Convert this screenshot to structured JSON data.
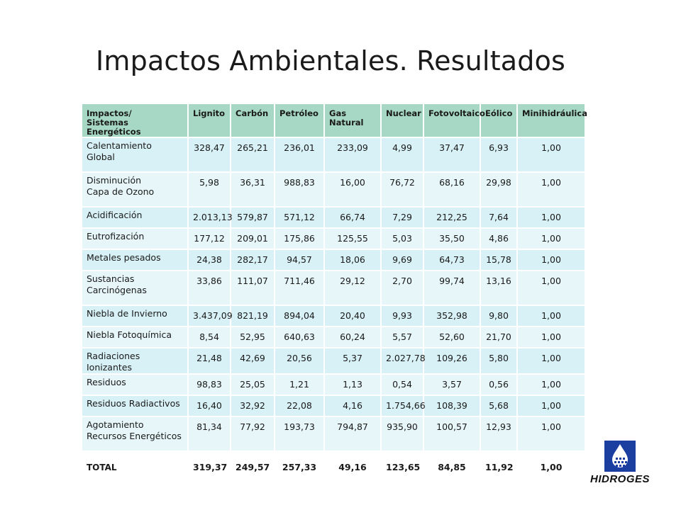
{
  "title": "Impactos Ambientales. Resultados",
  "table": {
    "header_first": [
      "Impactos/",
      "Sistemas Energéticos"
    ],
    "columns": [
      "Lignito",
      "Carbón",
      "Petróleo",
      "Gas Natural",
      "Nuclear",
      "Fotovoltaico",
      "Eólico",
      "Minihidráulica"
    ],
    "rows": [
      {
        "label": [
          "Calentamiento",
          "Global"
        ],
        "values": [
          "328,47",
          "265,21",
          "236,01",
          "233,09",
          "4,99",
          "37,47",
          "6,93",
          "1,00"
        ]
      },
      {
        "label": [
          "Disminución",
          "Capa de Ozono"
        ],
        "values": [
          "5,98",
          "36,31",
          "988,83",
          "16,00",
          "76,72",
          "68,16",
          "29,98",
          "1,00"
        ]
      },
      {
        "label": [
          "Acidificación"
        ],
        "values": [
          "2.013,13",
          "579,87",
          "571,12",
          "66,74",
          "7,29",
          "212,25",
          "7,64",
          "1,00"
        ]
      },
      {
        "label": [
          "Eutrofización"
        ],
        "values": [
          "177,12",
          "209,01",
          "175,86",
          "125,55",
          "5,03",
          "35,50",
          "4,86",
          "1,00"
        ]
      },
      {
        "label": [
          "Metales pesados"
        ],
        "values": [
          "24,38",
          "282,17",
          "94,57",
          "18,06",
          "9,69",
          "64,73",
          "15,78",
          "1,00"
        ]
      },
      {
        "label": [
          "Sustancias",
          "Carcinógenas"
        ],
        "values": [
          "33,86",
          "111,07",
          "711,46",
          "29,12",
          "2,70",
          "99,74",
          "13,16",
          "1,00"
        ]
      },
      {
        "label": [
          "Niebla de Invierno"
        ],
        "values": [
          "3.437,09",
          "821,19",
          "894,04",
          "20,40",
          "9,93",
          "352,98",
          "9,80",
          "1,00"
        ]
      },
      {
        "label": [
          "Niebla Fotoquímica"
        ],
        "values": [
          "8,54",
          "52,95",
          "640,63",
          "60,24",
          "5,57",
          "52,60",
          "21,70",
          "1,00"
        ]
      },
      {
        "label": [
          "Radiaciones Ionizantes"
        ],
        "values": [
          "21,48",
          "42,69",
          "20,56",
          "5,37",
          "2.027,78",
          "109,26",
          "5,80",
          "1,00"
        ]
      },
      {
        "label": [
          "Residuos"
        ],
        "values": [
          "98,83",
          "25,05",
          "1,21",
          "1,13",
          "0,54",
          "3,57",
          "0,56",
          "1,00"
        ]
      },
      {
        "label": [
          "Residuos Radiactivos"
        ],
        "values": [
          "16,40",
          "32,92",
          "22,08",
          "4,16",
          "1.754,66",
          "108,39",
          "5,68",
          "1,00"
        ]
      },
      {
        "label": [
          "Agotamiento",
          "Recursos Energéticos"
        ],
        "values": [
          "81,34",
          "77,92",
          "193,73",
          "794,87",
          "935,90",
          "100,57",
          "12,93",
          "1,00"
        ]
      }
    ],
    "total": {
      "label": "TOTAL",
      "values": [
        "319,37",
        "249,57",
        "257,33",
        "49,16",
        "123,65",
        "84,85",
        "11,92",
        "1,00"
      ]
    }
  },
  "logo": {
    "text": "HIDROGES",
    "icon": "water-drop-icon",
    "color": "#1a3fa0"
  },
  "colors": {
    "header_bg": "#a6d8c5",
    "row_bg": "#d8f1f6",
    "row_bg_alt": "#e6f6f9"
  }
}
